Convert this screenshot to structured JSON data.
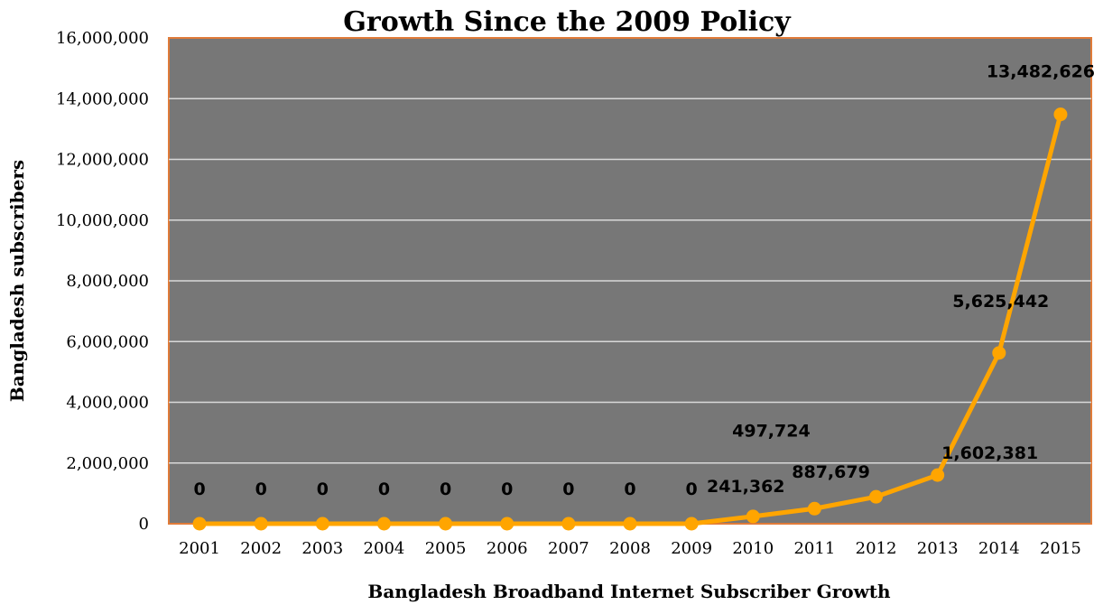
{
  "chart_data": {
    "type": "line",
    "title": "Growth Since the 2009 Policy",
    "xlabel": "Bangladesh Broadband Internet Subscriber Growth",
    "ylabel": "Bangladesh subscribers",
    "categories": [
      "2001",
      "2002",
      "2003",
      "2004",
      "2005",
      "2006",
      "2007",
      "2008",
      "2009",
      "2010",
      "2011",
      "2012",
      "2013",
      "2014",
      "2015"
    ],
    "values": [
      0,
      0,
      0,
      0,
      0,
      0,
      0,
      0,
      0,
      241362,
      497724,
      887679,
      1602381,
      5625442,
      13482626
    ],
    "data_labels": [
      "0",
      "0",
      "0",
      "0",
      "0",
      "0",
      "0",
      "0",
      "0",
      "241,362",
      "497,724",
      "887,679",
      "1,602,381",
      "5,625,442",
      "13,482,626"
    ],
    "y_ticks": [
      0,
      2000000,
      4000000,
      6000000,
      8000000,
      10000000,
      12000000,
      14000000,
      16000000
    ],
    "y_tick_labels": [
      "0",
      "2,000,000",
      "4,000,000",
      "6,000,000",
      "8,000,000",
      "10,000,000",
      "12,000,000",
      "14,000,000",
      "16,000,000"
    ],
    "ylim": [
      0,
      16000000
    ],
    "grid": true,
    "legend": "none",
    "colors": {
      "plot_background": "#777777",
      "plot_border": "#E07B39",
      "gridline": "#D9D9D9",
      "line": "#FFA500",
      "marker": "#FFA500"
    }
  }
}
